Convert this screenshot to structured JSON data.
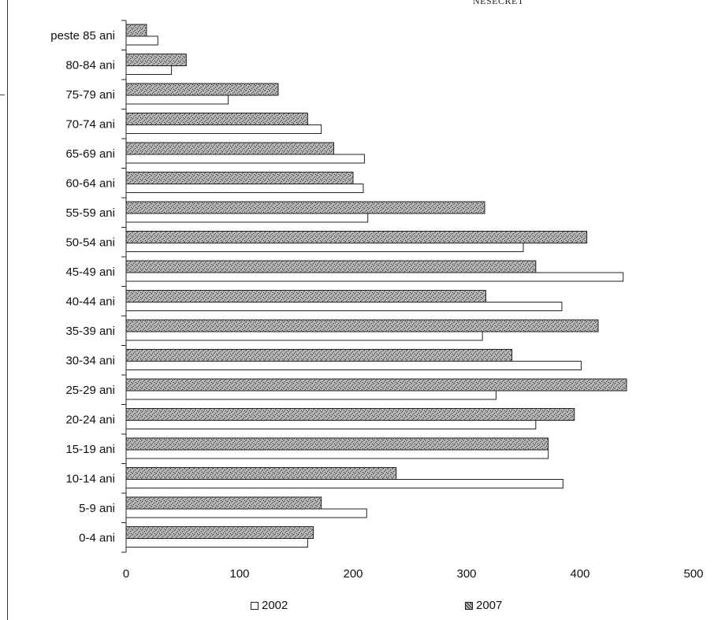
{
  "header_stamp": "NESECRET",
  "chart_data": {
    "type": "bar",
    "orientation": "horizontal",
    "categories": [
      "peste 85 ani",
      "80-84 ani",
      "75-79 ani",
      "70-74 ani",
      "65-69 ani",
      "60-64 ani",
      "55-59 ani",
      "50-54 ani",
      "45-49 ani",
      "40-44 ani",
      "35-39 ani",
      "30-34 ani",
      "25-29 ani",
      "20-24 ani",
      "15-19 ani",
      "10-14 ani",
      "5-9 ani",
      "0-4 ani"
    ],
    "series": [
      {
        "name": "2007",
        "values": [
          18,
          53,
          134,
          160,
          183,
          200,
          316,
          406,
          361,
          317,
          416,
          340,
          441,
          395,
          372,
          238,
          172,
          165
        ]
      },
      {
        "name": "2002",
        "values": [
          28,
          40,
          90,
          172,
          210,
          209,
          213,
          350,
          438,
          384,
          314,
          401,
          326,
          361,
          372,
          385,
          212,
          160
        ]
      }
    ],
    "xlim": [
      0,
      500
    ],
    "xticks": [
      "0",
      "100",
      "200",
      "300",
      "400",
      "500"
    ],
    "grid": false,
    "legend": {
      "position": "bottom",
      "items": [
        {
          "label": "2002",
          "swatch": "white"
        },
        {
          "label": "2007",
          "swatch": "stippled"
        }
      ]
    },
    "colors": {
      "bar_2002": "#ffffff",
      "bar_2007": "#a9a9a9",
      "outline": "#222222"
    }
  }
}
